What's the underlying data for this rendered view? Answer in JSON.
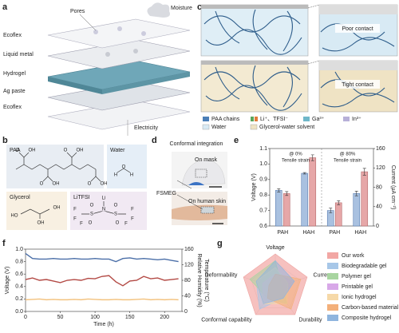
{
  "panel_labels": [
    "a",
    "b",
    "c",
    "d",
    "e",
    "f",
    "g"
  ],
  "panel_a": {
    "labels": [
      "Pores",
      "Moisture",
      "Ecoflex",
      "Liquid metal",
      "Hydrogel",
      "Ag paste",
      "Ecoflex",
      "Electricity"
    ]
  },
  "panel_b": {
    "titles": [
      "PAA",
      "Water",
      "Glycerol",
      "LiTFSI"
    ],
    "paa_atoms": [
      "O",
      "OH",
      "O",
      "OH",
      "O",
      "OH",
      "O",
      "OH"
    ],
    "water_atoms": [
      "H",
      "O",
      "H"
    ],
    "glycerol_atoms": [
      "HO",
      "OH",
      "OH"
    ],
    "litfsi_atoms": [
      "Li",
      "N",
      "S",
      "S",
      "O",
      "O",
      "O",
      "O",
      "F",
      "F",
      "F",
      "F",
      "F",
      "F"
    ]
  },
  "panel_c": {
    "labels": [
      "Poor contact",
      "Tight contact"
    ],
    "legend": [
      "PAA chains",
      "Li⁺、TFSI⁻",
      "Ga³⁺",
      "In³⁺",
      "Water",
      "Glycerol-water solvent"
    ]
  },
  "panel_d": {
    "title": "Conformal integration",
    "labels": [
      "On mask",
      "FSMEG",
      "On human skin"
    ]
  },
  "chart_data": [
    {
      "type": "bar",
      "categories": [
        "PAH",
        "HAH",
        "PAH",
        "HAH"
      ],
      "annotations": [
        "@ 0%",
        "Tensile strain",
        "@ 80%",
        "Tensile strain"
      ],
      "y_label": "Voltage (V)",
      "y2_label": "Current (μA cm⁻²)",
      "ylim": [
        0.6,
        1.1
      ],
      "yticks": [
        0.6,
        0.7,
        0.8,
        0.9,
        {
          "value": 1,
          "label": "1.0"
        },
        1.1
      ],
      "y2lim": [
        0,
        160
      ],
      "y2ticks": [
        0,
        40,
        80,
        120,
        160
      ],
      "series": [
        {
          "color": "#a9c1e0",
          "values": [
            0.83,
            0.94,
            0.7,
            0.81
          ],
          "errors": [
            0.01,
            0.005,
            0.015,
            0.015
          ]
        },
        {
          "color": "#e6a7a8",
          "axis": "y2",
          "values": [
            67,
            141,
            48,
            112
          ],
          "errors": [
            4,
            6,
            4,
            7
          ]
        }
      ]
    },
    {
      "type": "line",
      "x_label": "Time (h)",
      "y_label": "Voltage (V)",
      "y2_labels": [
        "Relative Humidity (%)",
        "Temperature (°C)"
      ],
      "x": [
        0,
        10,
        20,
        30,
        40,
        50,
        60,
        70,
        80,
        90,
        100,
        110,
        120,
        130,
        140,
        150,
        160,
        170,
        180,
        190,
        200,
        210,
        220
      ],
      "xlim": [
        0,
        225
      ],
      "xticks": [
        0,
        50,
        100,
        150,
        200
      ],
      "ylim": [
        0,
        1
      ],
      "yticks": [
        {
          "value": 0,
          "label": "0.0"
        },
        0.2,
        0.4,
        0.6,
        0.8,
        {
          "value": 1,
          "label": "1.0"
        }
      ],
      "y2lim": [
        0,
        160
      ],
      "y2ticks": [
        0,
        40,
        80,
        120,
        160
      ],
      "series": [
        {
          "color": "#4b6fa8",
          "values": [
            0.93,
            0.85,
            0.84,
            0.84,
            0.85,
            0.84,
            0.84,
            0.85,
            0.84,
            0.84,
            0.85,
            0.84,
            0.84,
            0.8,
            0.85,
            0.86,
            0.84,
            0.85,
            0.84,
            0.83,
            0.84,
            0.82,
            0.8
          ]
        },
        {
          "color": "#b34a45",
          "axis": "y2",
          "values": [
            82,
            86,
            80,
            82,
            78,
            74,
            80,
            82,
            80,
            85,
            84,
            90,
            92,
            76,
            66,
            78,
            80,
            90,
            84,
            86,
            80,
            82,
            84
          ]
        },
        {
          "color": "#f3c27e",
          "axis": "y2",
          "values": [
            30,
            31,
            32,
            30,
            31,
            30,
            30,
            31,
            30,
            32,
            31,
            30,
            30,
            31,
            30,
            30,
            31,
            32,
            30,
            31,
            30,
            31,
            30
          ]
        }
      ]
    },
    {
      "type": "radar",
      "axes": [
        "Voltage",
        "Current",
        "Durability",
        "Conformal capability",
        "Deformability"
      ],
      "rlim": [
        0,
        5
      ],
      "legend_position": "right",
      "series": [
        {
          "name": "Our work",
          "color": "#f2a7a4",
          "values": [
            5,
            5,
            5,
            5,
            5
          ]
        },
        {
          "name": "Biodegradable gel",
          "color": "#a7c7e8",
          "values": [
            3,
            2,
            2,
            4,
            3
          ]
        },
        {
          "name": "Polymer gel",
          "color": "#a8d5a0",
          "values": [
            4,
            1,
            3,
            2,
            4
          ]
        },
        {
          "name": "Printable gel",
          "color": "#d8a8e8",
          "values": [
            2,
            3,
            2,
            3,
            2
          ]
        },
        {
          "name": "Ionic hydrogel",
          "color": "#f6d9a8",
          "values": [
            3,
            2,
            3,
            3,
            3
          ]
        },
        {
          "name": "Carbon-based material",
          "color": "#f3b07a",
          "values": [
            2,
            4,
            4,
            2,
            1
          ]
        },
        {
          "name": "Composite hydrogel",
          "color": "#8fb5de",
          "values": [
            4,
            3,
            2,
            3,
            3
          ]
        }
      ]
    }
  ]
}
